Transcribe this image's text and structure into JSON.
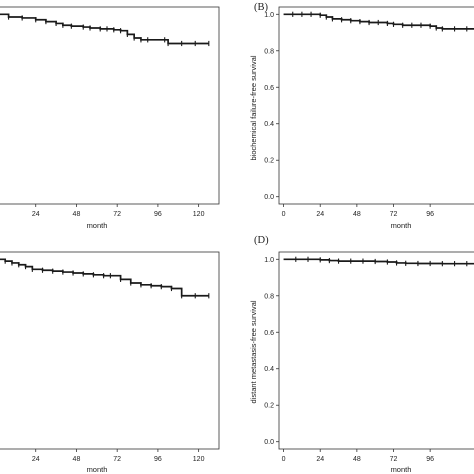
{
  "colors": {
    "line": "#1a1a1a",
    "frame": "#333333",
    "background": "#ffffff"
  },
  "chart_data": [
    {
      "id": "A",
      "type": "line",
      "panel_label": "",
      "xlabel": "month",
      "ylabel": "",
      "xticks": [
        24,
        48,
        72,
        96,
        120
      ],
      "yticks": [],
      "xlim": [
        0,
        132
      ],
      "ylim": [
        -0.04,
        1.04
      ],
      "grid": false,
      "series": [
        {
          "x": [
            0,
            8,
            16,
            24,
            30,
            36,
            40,
            45,
            52,
            56,
            62,
            66,
            70,
            74,
            78,
            82,
            86,
            90,
            100,
            102,
            110,
            118,
            126
          ],
          "y": [
            1.0,
            0.985,
            0.98,
            0.97,
            0.96,
            0.95,
            0.94,
            0.935,
            0.93,
            0.925,
            0.92,
            0.92,
            0.915,
            0.91,
            0.89,
            0.87,
            0.86,
            0.86,
            0.86,
            0.84,
            0.84,
            0.84,
            0.84
          ]
        }
      ]
    },
    {
      "id": "B",
      "type": "line",
      "panel_label": "(B)",
      "xlabel": "month",
      "ylabel": "biochemical failure-free survival",
      "xticks": [
        0,
        24,
        48,
        72,
        96
      ],
      "yticks": [
        0.0,
        0.2,
        0.4,
        0.6,
        0.8,
        1.0
      ],
      "xlim": [
        -3,
        128
      ],
      "ylim": [
        -0.04,
        1.04
      ],
      "grid": false,
      "series": [
        {
          "x": [
            0,
            6,
            12,
            18,
            24,
            28,
            32,
            38,
            44,
            50,
            56,
            62,
            68,
            72,
            78,
            84,
            90,
            96,
            100,
            104,
            112,
            120,
            127
          ],
          "y": [
            1.0,
            1.0,
            1.0,
            1.0,
            0.995,
            0.985,
            0.975,
            0.97,
            0.965,
            0.96,
            0.955,
            0.955,
            0.95,
            0.945,
            0.94,
            0.94,
            0.94,
            0.935,
            0.925,
            0.92,
            0.92,
            0.92,
            0.92
          ]
        }
      ]
    },
    {
      "id": "C",
      "type": "line",
      "panel_label": "",
      "xlabel": "month",
      "ylabel": "",
      "xticks": [
        24,
        48,
        72,
        96,
        120
      ],
      "yticks": [],
      "xlim": [
        0,
        132
      ],
      "ylim": [
        -0.04,
        1.04
      ],
      "grid": false,
      "series": [
        {
          "x": [
            0,
            6,
            10,
            14,
            18,
            22,
            28,
            34,
            40,
            46,
            52,
            58,
            64,
            68,
            74,
            80,
            86,
            92,
            98,
            104,
            110,
            118,
            126
          ],
          "y": [
            1.0,
            0.99,
            0.98,
            0.97,
            0.96,
            0.945,
            0.94,
            0.935,
            0.93,
            0.925,
            0.92,
            0.915,
            0.91,
            0.91,
            0.89,
            0.87,
            0.86,
            0.855,
            0.85,
            0.84,
            0.8,
            0.8,
            0.8
          ]
        }
      ]
    },
    {
      "id": "D",
      "type": "line",
      "panel_label": "(D)",
      "xlabel": "month",
      "ylabel": "distant metastasis-free survival",
      "xticks": [
        0,
        24,
        48,
        72,
        96
      ],
      "yticks": [
        0.0,
        0.2,
        0.4,
        0.6,
        0.8,
        1.0
      ],
      "xlim": [
        -3,
        128
      ],
      "ylim": [
        -0.04,
        1.04
      ],
      "grid": false,
      "series": [
        {
          "x": [
            0,
            8,
            16,
            24,
            30,
            36,
            44,
            52,
            60,
            68,
            74,
            80,
            88,
            96,
            104,
            112,
            120,
            127
          ],
          "y": [
            1.0,
            1.0,
            1.0,
            0.997,
            0.993,
            0.99,
            0.99,
            0.99,
            0.988,
            0.985,
            0.98,
            0.978,
            0.977,
            0.977,
            0.976,
            0.976,
            0.976,
            0.976
          ]
        }
      ]
    }
  ]
}
